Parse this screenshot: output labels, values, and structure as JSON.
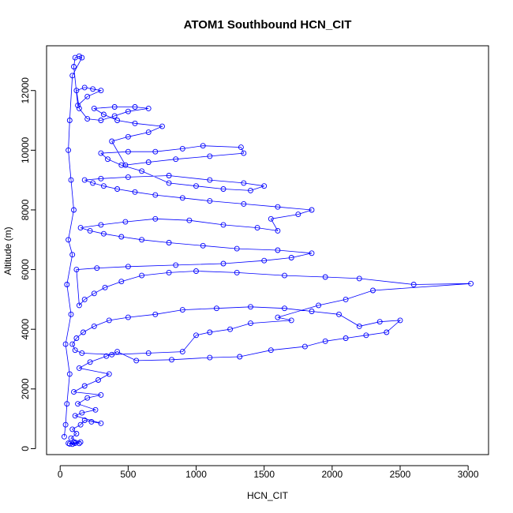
{
  "chart_data": {
    "type": "scatter",
    "title": "ATOM1 Southbound HCN_CIT",
    "xlabel": "HCN_CIT",
    "ylabel": "Altitude (m)",
    "xlim": [
      -100,
      3150
    ],
    "ylim": [
      -200,
      13500
    ],
    "xticks": [
      0,
      500,
      1000,
      1500,
      2000,
      2500,
      3000
    ],
    "yticks": [
      0,
      2000,
      4000,
      6000,
      8000,
      10000,
      12000
    ],
    "grid": false,
    "legend": "none",
    "marker": "open-circle",
    "connect_points": true,
    "series_color": "#0000ff",
    "points": [
      [
        60,
        180
      ],
      [
        110,
        180
      ],
      [
        140,
        175
      ],
      [
        90,
        150
      ],
      [
        70,
        160
      ],
      [
        100,
        200
      ],
      [
        150,
        220
      ],
      [
        80,
        350
      ],
      [
        120,
        500
      ],
      [
        90,
        650
      ],
      [
        150,
        800
      ],
      [
        180,
        950
      ],
      [
        230,
        900
      ],
      [
        300,
        850
      ],
      [
        110,
        1100
      ],
      [
        160,
        1200
      ],
      [
        260,
        1300
      ],
      [
        130,
        1500
      ],
      [
        200,
        1700
      ],
      [
        300,
        1800
      ],
      [
        100,
        1900
      ],
      [
        180,
        2100
      ],
      [
        280,
        2300
      ],
      [
        360,
        2500
      ],
      [
        140,
        2700
      ],
      [
        220,
        2900
      ],
      [
        340,
        3100
      ],
      [
        420,
        3250
      ],
      [
        560,
        2950
      ],
      [
        820,
        2980
      ],
      [
        1100,
        3050
      ],
      [
        1320,
        3080
      ],
      [
        1550,
        3300
      ],
      [
        1800,
        3420
      ],
      [
        1950,
        3600
      ],
      [
        2100,
        3700
      ],
      [
        2250,
        3800
      ],
      [
        2400,
        3900
      ],
      [
        2500,
        4300
      ],
      [
        2350,
        4250
      ],
      [
        2200,
        4100
      ],
      [
        2050,
        4500
      ],
      [
        1850,
        4600
      ],
      [
        1650,
        4700
      ],
      [
        1400,
        4750
      ],
      [
        1150,
        4700
      ],
      [
        900,
        4650
      ],
      [
        700,
        4500
      ],
      [
        500,
        4400
      ],
      [
        360,
        4300
      ],
      [
        250,
        4100
      ],
      [
        170,
        3900
      ],
      [
        120,
        3700
      ],
      [
        90,
        3500
      ],
      [
        110,
        3300
      ],
      [
        160,
        3200
      ],
      [
        380,
        3150
      ],
      [
        650,
        3200
      ],
      [
        900,
        3250
      ],
      [
        1000,
        3800
      ],
      [
        1100,
        3900
      ],
      [
        1250,
        4000
      ],
      [
        1400,
        4200
      ],
      [
        1700,
        4300
      ],
      [
        1600,
        4400
      ],
      [
        1900,
        4800
      ],
      [
        2100,
        5000
      ],
      [
        2300,
        5300
      ],
      [
        3020,
        5530
      ],
      [
        2600,
        5500
      ],
      [
        2200,
        5700
      ],
      [
        1950,
        5750
      ],
      [
        1650,
        5800
      ],
      [
        1300,
        5900
      ],
      [
        1000,
        5950
      ],
      [
        800,
        5900
      ],
      [
        600,
        5800
      ],
      [
        450,
        5600
      ],
      [
        330,
        5400
      ],
      [
        250,
        5200
      ],
      [
        180,
        5000
      ],
      [
        140,
        4800
      ],
      [
        120,
        6000
      ],
      [
        270,
        6050
      ],
      [
        500,
        6100
      ],
      [
        850,
        6150
      ],
      [
        1200,
        6200
      ],
      [
        1500,
        6300
      ],
      [
        1700,
        6400
      ],
      [
        1850,
        6550
      ],
      [
        1600,
        6650
      ],
      [
        1300,
        6700
      ],
      [
        1050,
        6800
      ],
      [
        800,
        6900
      ],
      [
        600,
        7000
      ],
      [
        450,
        7100
      ],
      [
        320,
        7200
      ],
      [
        220,
        7300
      ],
      [
        150,
        7400
      ],
      [
        300,
        7500
      ],
      [
        480,
        7600
      ],
      [
        700,
        7700
      ],
      [
        950,
        7650
      ],
      [
        1200,
        7500
      ],
      [
        1450,
        7400
      ],
      [
        1600,
        7300
      ],
      [
        1550,
        7700
      ],
      [
        1750,
        7850
      ],
      [
        1850,
        8000
      ],
      [
        1600,
        8100
      ],
      [
        1350,
        8200
      ],
      [
        1100,
        8300
      ],
      [
        900,
        8400
      ],
      [
        700,
        8500
      ],
      [
        550,
        8600
      ],
      [
        420,
        8700
      ],
      [
        320,
        8800
      ],
      [
        240,
        8900
      ],
      [
        180,
        9000
      ],
      [
        300,
        9050
      ],
      [
        500,
        9100
      ],
      [
        800,
        9150
      ],
      [
        1100,
        9000
      ],
      [
        1350,
        8900
      ],
      [
        1500,
        8800
      ],
      [
        1400,
        8650
      ],
      [
        1200,
        8700
      ],
      [
        1000,
        8800
      ],
      [
        800,
        8900
      ],
      [
        600,
        9300
      ],
      [
        450,
        9500
      ],
      [
        350,
        9700
      ],
      [
        300,
        9900
      ],
      [
        500,
        9950
      ],
      [
        700,
        9950
      ],
      [
        900,
        10050
      ],
      [
        1050,
        10150
      ],
      [
        1330,
        10100
      ],
      [
        1350,
        9900
      ],
      [
        1100,
        9800
      ],
      [
        850,
        9700
      ],
      [
        650,
        9600
      ],
      [
        480,
        9500
      ],
      [
        380,
        10300
      ],
      [
        500,
        10450
      ],
      [
        650,
        10600
      ],
      [
        750,
        10800
      ],
      [
        550,
        10900
      ],
      [
        420,
        11000
      ],
      [
        320,
        11200
      ],
      [
        250,
        11400
      ],
      [
        400,
        11450
      ],
      [
        550,
        11450
      ],
      [
        650,
        11400
      ],
      [
        500,
        11300
      ],
      [
        400,
        11150
      ],
      [
        300,
        11000
      ],
      [
        200,
        11050
      ],
      [
        140,
        11400
      ],
      [
        120,
        12000
      ],
      [
        180,
        12100
      ],
      [
        240,
        12050
      ],
      [
        300,
        12000
      ],
      [
        200,
        11800
      ],
      [
        130,
        11500
      ],
      [
        100,
        12800
      ],
      [
        110,
        13100
      ],
      [
        140,
        13150
      ],
      [
        160,
        13100
      ],
      [
        90,
        12500
      ],
      [
        70,
        11000
      ],
      [
        60,
        10000
      ],
      [
        80,
        9000
      ],
      [
        100,
        8000
      ],
      [
        60,
        7000
      ],
      [
        90,
        6500
      ],
      [
        50,
        5500
      ],
      [
        80,
        4500
      ],
      [
        40,
        3500
      ],
      [
        70,
        2500
      ],
      [
        50,
        1500
      ],
      [
        40,
        800
      ],
      [
        30,
        400
      ]
    ]
  }
}
